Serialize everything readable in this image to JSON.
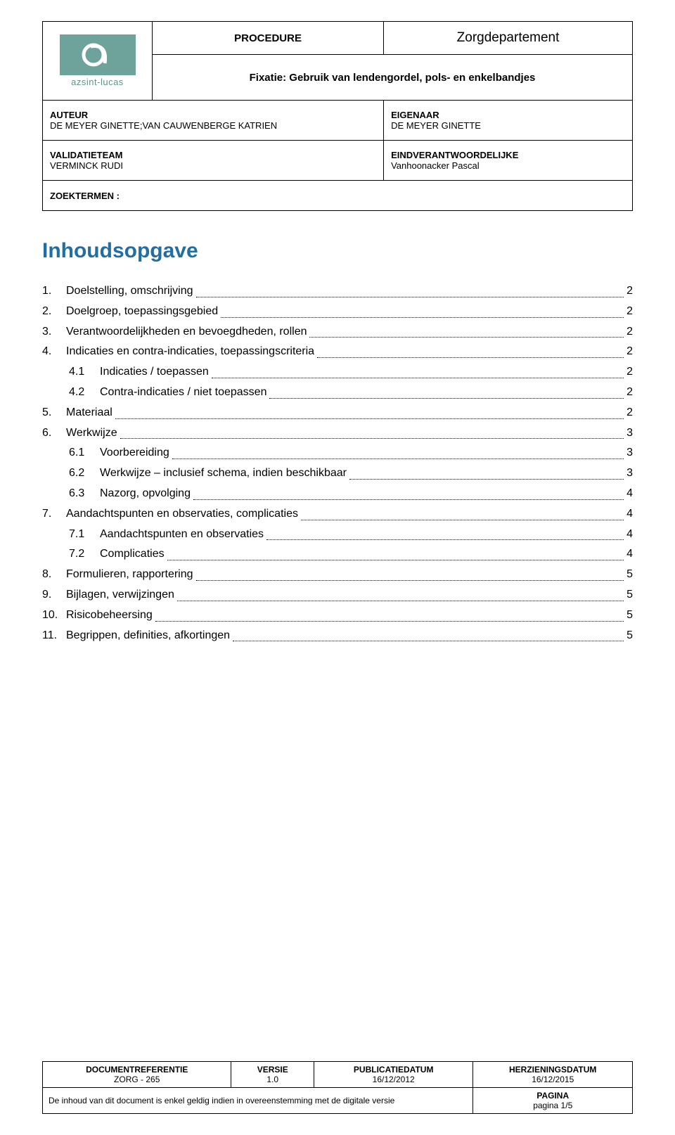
{
  "header": {
    "logo_text": "azsint-lucas",
    "procedure_label": "PROCEDURE",
    "department": "Zorgdepartement",
    "doc_title": "Fixatie: Gebruik van lendengordel, pols- en enkelbandjes",
    "author_label": "AUTEUR",
    "author_value": "DE MEYER GINETTE;VAN CAUWENBERGE KATRIEN",
    "owner_label": "EIGENAAR",
    "owner_value": "DE MEYER GINETTE",
    "validation_label": "VALIDATIETEAM",
    "validation_value": "VERMINCK RUDI",
    "responsible_label": "EINDVERANTWOORDELIJKE",
    "responsible_value": "Vanhoonacker Pascal",
    "zoektermen_label": "ZOEKTERMEN :"
  },
  "toc_title": "Inhoudsopgave",
  "toc": [
    {
      "level": 1,
      "num": "1.",
      "label": "Doelstelling, omschrijving",
      "page": "2"
    },
    {
      "level": 1,
      "num": "2.",
      "label": "Doelgroep, toepassingsgebied",
      "page": "2"
    },
    {
      "level": 1,
      "num": "3.",
      "label": "Verantwoordelijkheden en bevoegdheden, rollen",
      "page": "2"
    },
    {
      "level": 1,
      "num": "4.",
      "label": "Indicaties en contra-indicaties, toepassingscriteria",
      "page": "2"
    },
    {
      "level": 2,
      "num": "4.1",
      "label": "Indicaties / toepassen",
      "page": "2"
    },
    {
      "level": 2,
      "num": "4.2",
      "label": "Contra-indicaties / niet toepassen",
      "page": "2"
    },
    {
      "level": 1,
      "num": "5.",
      "label": "Materiaal",
      "page": "2"
    },
    {
      "level": 1,
      "num": "6.",
      "label": "Werkwijze",
      "page": "3"
    },
    {
      "level": 2,
      "num": "6.1",
      "label": "Voorbereiding",
      "page": "3"
    },
    {
      "level": 2,
      "num": "6.2",
      "label": "Werkwijze – inclusief schema, indien beschikbaar",
      "page": "3"
    },
    {
      "level": 2,
      "num": "6.3",
      "label": "Nazorg, opvolging",
      "page": "4"
    },
    {
      "level": 1,
      "num": "7.",
      "label": "Aandachtspunten en observaties, complicaties",
      "page": "4"
    },
    {
      "level": 2,
      "num": "7.1",
      "label": "Aandachtspunten en observaties",
      "page": "4"
    },
    {
      "level": 2,
      "num": "7.2",
      "label": "Complicaties",
      "page": "4"
    },
    {
      "level": 1,
      "num": "8.",
      "label": "Formulieren, rapportering",
      "page": "5"
    },
    {
      "level": 1,
      "num": "9.",
      "label": "Bijlagen, verwijzingen",
      "page": "5"
    },
    {
      "level": 1,
      "num": "10.",
      "label": "Risicobeheersing",
      "page": "5"
    },
    {
      "level": 1,
      "num": "11.",
      "label": "Begrippen, definities, afkortingen",
      "page": "5"
    }
  ],
  "footer": {
    "docref_label": "DOCUMENTREFERENTIE",
    "docref_value": "ZORG - 265",
    "version_label": "VERSIE",
    "version_value": "1.0",
    "pubdate_label": "PUBLICATIEDATUM",
    "pubdate_value": "16/12/2012",
    "revdate_label": "HERZIENINGSDATUM",
    "revdate_value": "16/12/2015",
    "validity_note": "De inhoud van dit document is enkel geldig indien in overeenstemming met de digitale versie",
    "pagina_label": "PAGINA",
    "pagina_value": "pagina 1/5"
  },
  "colors": {
    "accent_teal": "#6ea39c",
    "heading_blue": "#1f6ea5",
    "text": "#000000",
    "bg": "#ffffff"
  }
}
